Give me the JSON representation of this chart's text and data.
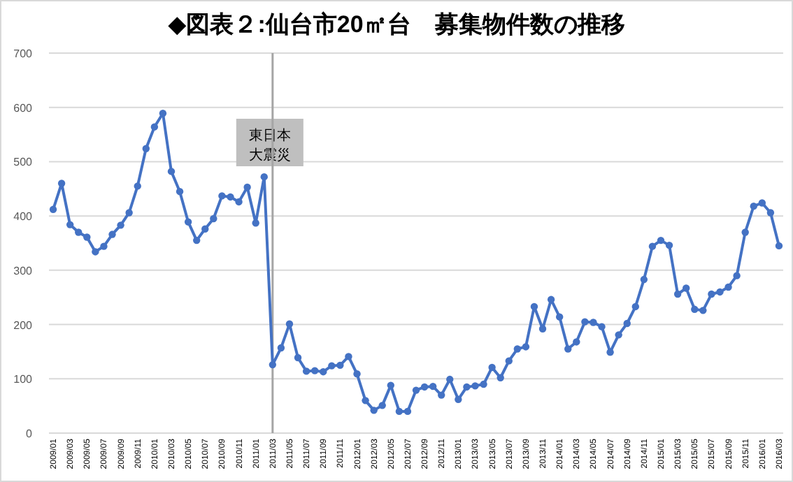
{
  "chart_data": {
    "type": "line",
    "title": "◆図表２:仙台市20㎡台　募集物件数の推移",
    "categories": [
      "2009/01",
      null,
      "2009/03",
      null,
      "2009/05",
      null,
      "2009/07",
      null,
      "2009/09",
      null,
      "2009/11",
      null,
      "2010/01",
      null,
      "2010/03",
      null,
      "2010/05",
      null,
      "2010/07",
      null,
      "2010/09",
      null,
      "2010/11",
      null,
      "2011/01",
      null,
      "2011/03",
      null,
      "2011/05",
      null,
      "2011/07",
      null,
      "2011/09",
      null,
      "2011/11",
      null,
      "2012/01",
      null,
      "2012/03",
      null,
      "2012/05",
      null,
      "2012/07",
      null,
      "2012/09",
      null,
      "2012/11",
      null,
      "2013/01",
      null,
      "2013/03",
      null,
      "2013/05",
      null,
      "2013/07",
      null,
      "2013/09",
      null,
      "2013/11",
      null,
      "2014/01",
      null,
      "2014/03",
      null,
      "2014/05",
      null,
      "2014/07",
      null,
      "2014/09",
      null,
      "2014/11",
      null,
      "2015/01",
      null,
      "2015/03",
      null,
      "2015/05",
      null,
      "2015/07",
      null,
      "2015/09",
      null,
      "2015/11",
      null,
      "2016/01",
      null,
      "2016/03"
    ],
    "series": [
      {
        "color": "#4472c4",
        "values": [
          412,
          460,
          384,
          370,
          361,
          334,
          344,
          366,
          383,
          406,
          455,
          524,
          564,
          589,
          482,
          445,
          389,
          355,
          376,
          395,
          437,
          435,
          426,
          453,
          387,
          472,
          126,
          157,
          201,
          139,
          114,
          115,
          113,
          124,
          125,
          141,
          109,
          60,
          42,
          51,
          88,
          40,
          40,
          79,
          85,
          86,
          70,
          99,
          62,
          85,
          87,
          90,
          121,
          102,
          133,
          155,
          159,
          233,
          192,
          246,
          214,
          155,
          168,
          205,
          204,
          196,
          149,
          181,
          202,
          233,
          283,
          344,
          355,
          346,
          256,
          267,
          228,
          226,
          256,
          260,
          269,
          290,
          370,
          418,
          424,
          406,
          345
        ]
      }
    ],
    "ylim": [
      0,
      700
    ],
    "yticks": [
      0,
      100,
      200,
      300,
      400,
      500,
      600,
      700
    ],
    "grid": "y",
    "marker": "circle",
    "line_style": "solid",
    "ref_lines": [
      {
        "axis": "x",
        "value": "2011/03",
        "label": "東日本大震災",
        "color": "#a5a5a5"
      }
    ]
  }
}
